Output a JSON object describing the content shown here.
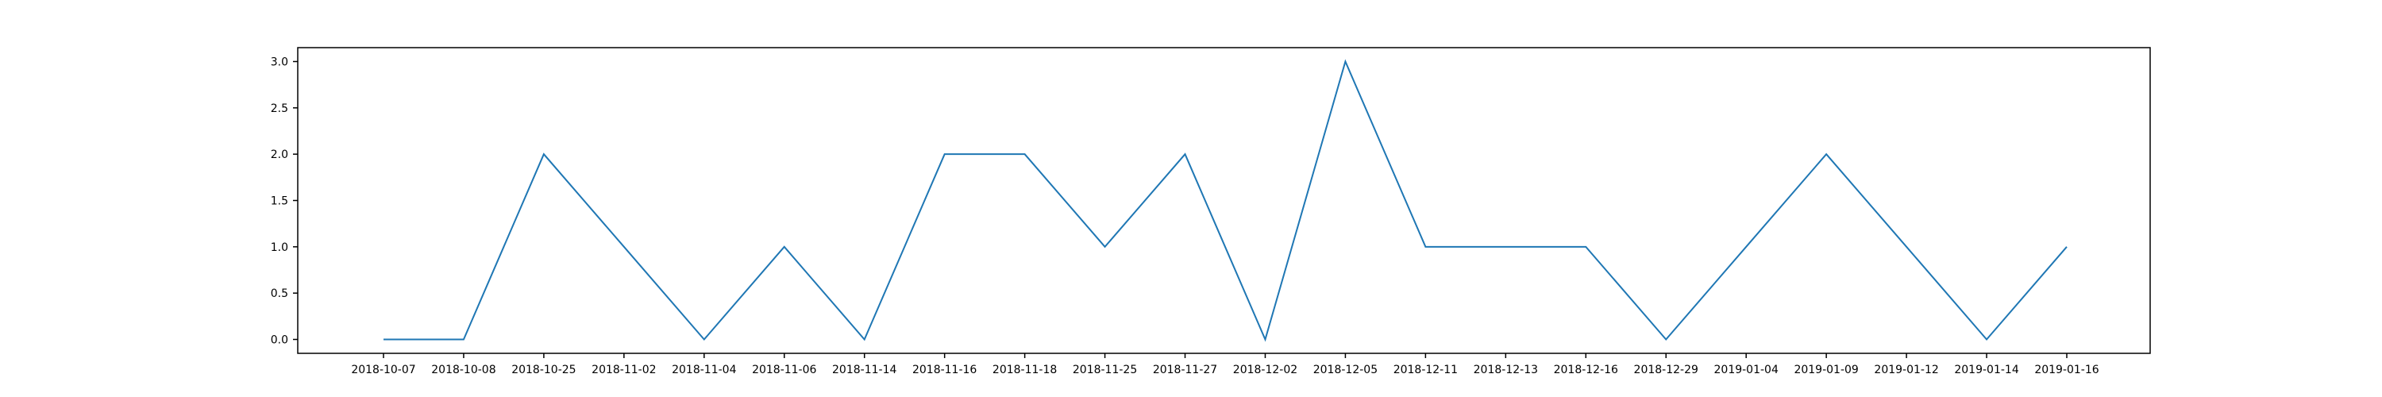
{
  "chart_data": {
    "type": "line",
    "title": "",
    "xlabel": "",
    "ylabel": "",
    "categories": [
      "2018-10-07",
      "2018-10-08",
      "2018-10-25",
      "2018-11-02",
      "2018-11-04",
      "2018-11-06",
      "2018-11-14",
      "2018-11-16",
      "2018-11-18",
      "2018-11-25",
      "2018-11-27",
      "2018-12-02",
      "2018-12-05",
      "2018-12-11",
      "2018-12-13",
      "2018-12-16",
      "2018-12-29",
      "2019-01-04",
      "2019-01-09",
      "2019-01-12",
      "2019-01-14",
      "2019-01-16"
    ],
    "series": [
      {
        "values": [
          0,
          0,
          2,
          1,
          0,
          1,
          0,
          2,
          2,
          1,
          2,
          0,
          3,
          1,
          1,
          1,
          0,
          1,
          2,
          1,
          0,
          1
        ]
      }
    ],
    "ylim": [
      -0.15,
      3.15
    ],
    "yticks": [
      {
        "value": 0.0,
        "label": "0.0"
      },
      {
        "value": 0.5,
        "label": "0.5"
      },
      {
        "value": 1.0,
        "label": "1.0"
      },
      {
        "value": 1.5,
        "label": "1.5"
      },
      {
        "value": 2.0,
        "label": "2.0"
      },
      {
        "value": 2.5,
        "label": "2.5"
      },
      {
        "value": 3.0,
        "label": "3.0"
      }
    ],
    "grid": false,
    "legend": "none",
    "line_color": "#1f77b4",
    "axis_color": "#000000"
  }
}
